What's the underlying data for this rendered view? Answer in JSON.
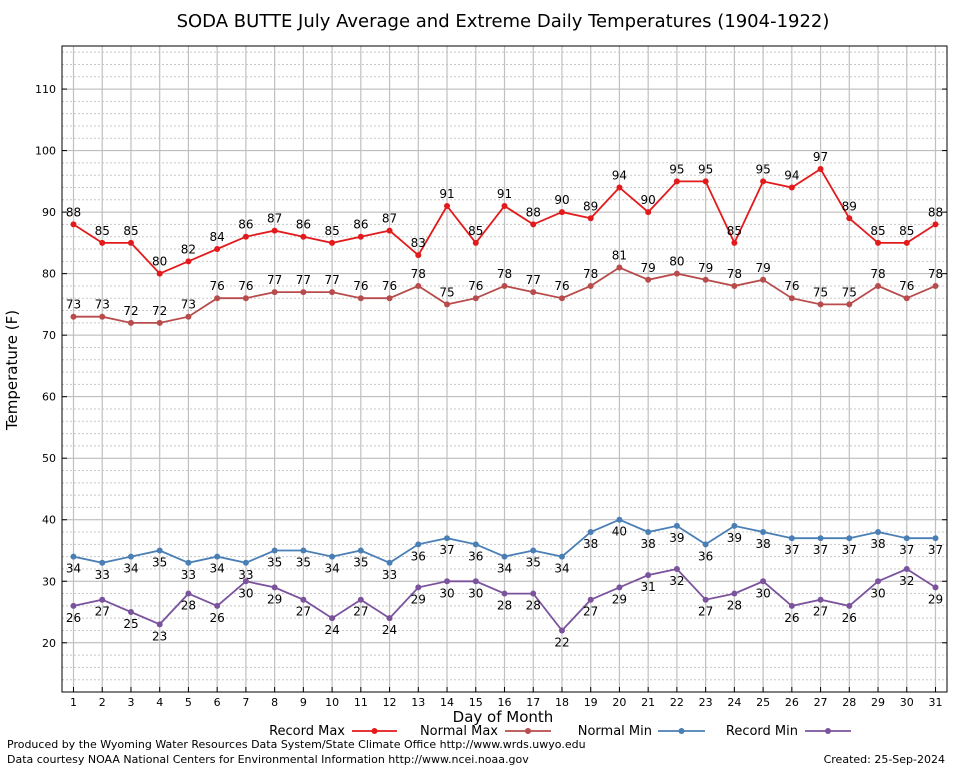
{
  "chart_data": {
    "type": "line",
    "title": "SODA BUTTE July Average and Extreme Daily Temperatures (1904-1922)",
    "xlabel": "Day of Month",
    "ylabel": "Temperature (F)",
    "ylim": [
      12,
      117
    ],
    "xlim": [
      0.6,
      31.4
    ],
    "yticks": [
      20,
      30,
      40,
      50,
      60,
      70,
      80,
      90,
      100,
      110
    ],
    "x": [
      1,
      2,
      3,
      4,
      5,
      6,
      7,
      8,
      9,
      10,
      11,
      12,
      13,
      14,
      15,
      16,
      17,
      18,
      19,
      20,
      21,
      22,
      23,
      24,
      25,
      26,
      27,
      28,
      29,
      30,
      31
    ],
    "grid": true,
    "legend": "bottom",
    "series": [
      {
        "name": "Record Max",
        "color": "#e31a1c",
        "label_pos": "above",
        "values": [
          88,
          85,
          85,
          80,
          82,
          84,
          86,
          87,
          86,
          85,
          86,
          87,
          83,
          91,
          85,
          91,
          88,
          90,
          89,
          94,
          90,
          95,
          95,
          85,
          95,
          94,
          97,
          89,
          85,
          85,
          88
        ]
      },
      {
        "name": "Normal Max",
        "color": "#b84c4c",
        "label_pos": "above",
        "values": [
          73,
          73,
          72,
          72,
          73,
          76,
          76,
          77,
          77,
          77,
          76,
          76,
          78,
          75,
          76,
          78,
          77,
          76,
          78,
          81,
          79,
          80,
          79,
          78,
          79,
          76,
          75,
          75,
          78,
          76,
          78
        ]
      },
      {
        "name": "Normal Min",
        "color": "#4a7fb5",
        "label_pos": "below",
        "values": [
          34,
          33,
          34,
          35,
          33,
          34,
          33,
          35,
          35,
          34,
          35,
          33,
          36,
          37,
          36,
          34,
          35,
          34,
          38,
          40,
          38,
          39,
          36,
          39,
          38,
          37,
          37,
          37,
          38,
          37,
          37
        ]
      },
      {
        "name": "Record Min",
        "color": "#7b539d",
        "label_pos": "below",
        "values": [
          26,
          27,
          25,
          23,
          28,
          26,
          30,
          29,
          27,
          24,
          27,
          24,
          29,
          30,
          30,
          28,
          28,
          22,
          27,
          29,
          31,
          32,
          27,
          28,
          30,
          26,
          27,
          26,
          30,
          32,
          29
        ]
      }
    ]
  },
  "footer": {
    "produced_by": "Produced by the Wyoming Water Resources Data System/State Climate Office http://www.wrds.uwyo.edu",
    "courtesy": "Data courtesy NOAA National Centers for Environmental Information http://www.ncei.noaa.gov",
    "created": "Created:  25-Sep-2024"
  }
}
